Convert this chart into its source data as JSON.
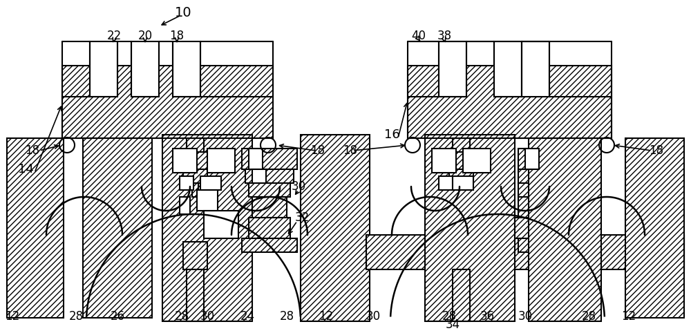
{
  "bg": "#ffffff",
  "lc": "#000000",
  "lw": 1.5,
  "figsize": [
    10.0,
    4.82
  ],
  "dpi": 100,
  "hatch": "////"
}
